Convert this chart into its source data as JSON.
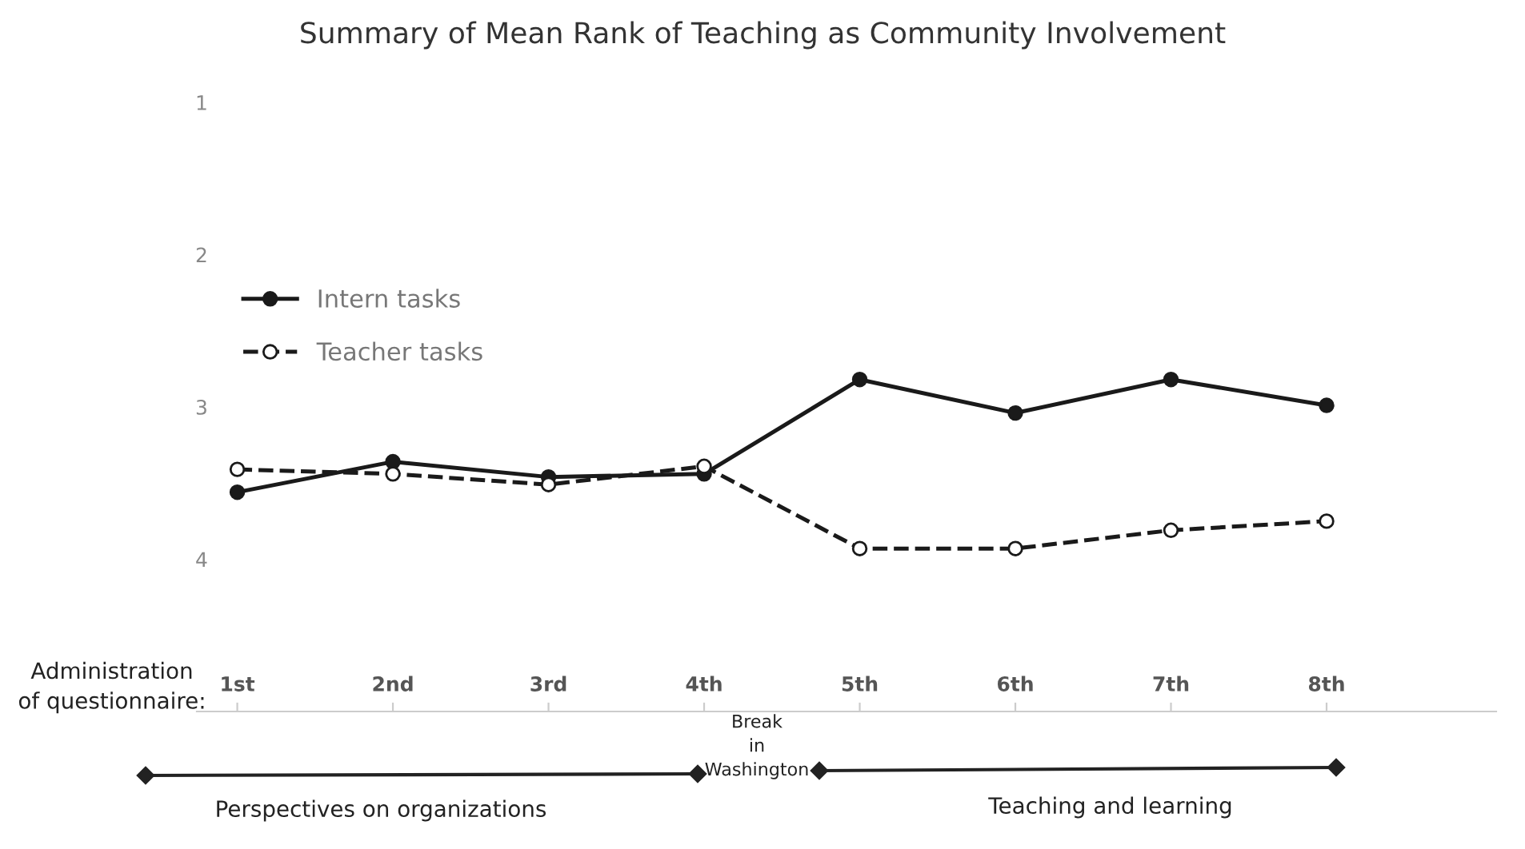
{
  "chart_data": {
    "type": "line",
    "title": "Summary of Mean Rank of Teaching as Community Involvement",
    "categories": [
      "1st",
      "2nd",
      "3rd",
      "4th",
      "5th",
      "6th",
      "7th",
      "8th"
    ],
    "series": [
      {
        "name": "Intern tasks",
        "color": "#1a1a1a",
        "line_style": "solid",
        "values": [
          3.56,
          3.36,
          3.46,
          3.44,
          2.82,
          3.04,
          2.82,
          2.99
        ]
      },
      {
        "name": "Teacher tasks",
        "color": "#1a1a1a",
        "line_style": "dashed",
        "values": [
          3.41,
          3.44,
          3.51,
          3.39,
          3.93,
          3.93,
          3.81,
          3.75
        ]
      }
    ],
    "marker": "circle",
    "ylim": [
      5,
      1
    ],
    "yticks": [
      1,
      2,
      3,
      4
    ],
    "grid": false,
    "legend": "upper left",
    "annotations": [
      "Administration\nof questionnaire:",
      "Perspectives on organizations",
      "Break\nin\nWashington",
      "Teaching and learning"
    ]
  }
}
